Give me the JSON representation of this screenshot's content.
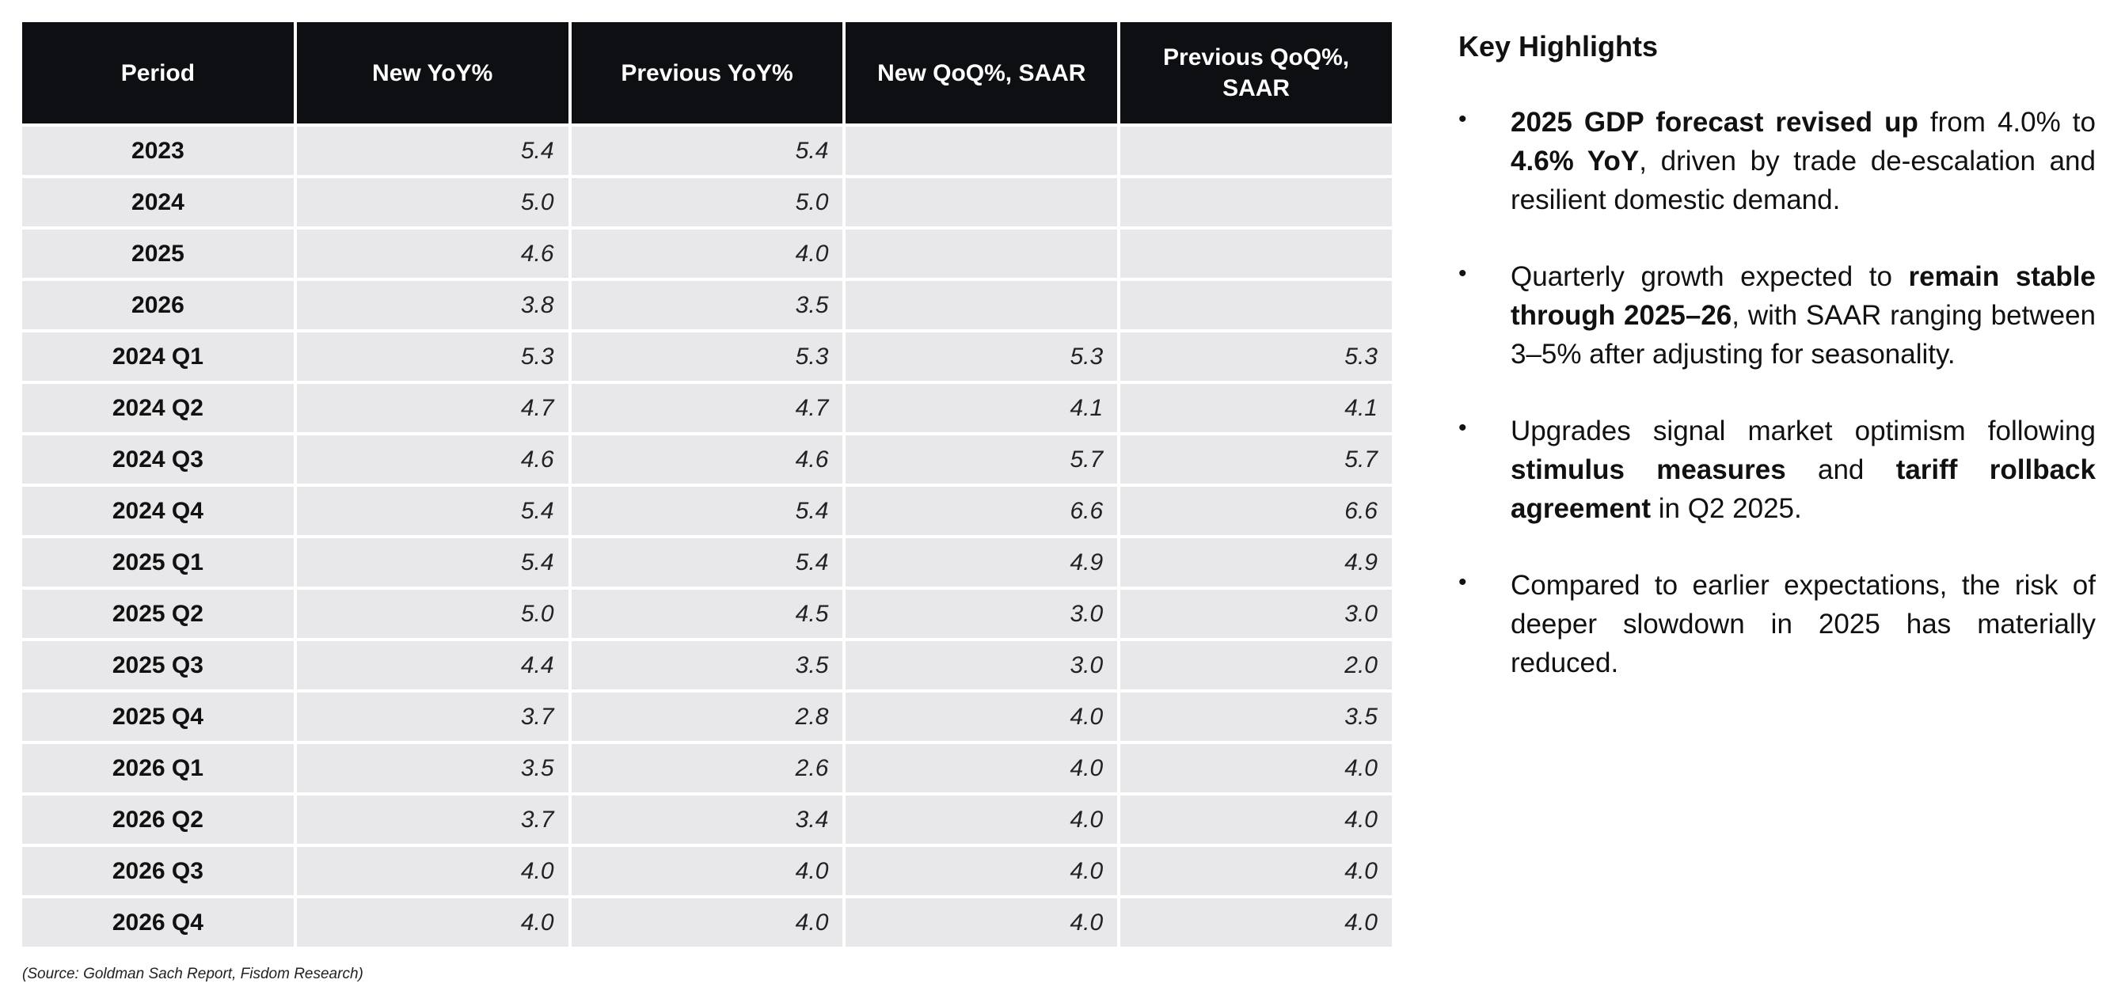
{
  "table": {
    "headers": [
      "Period",
      "New YoY%",
      "Previous YoY%",
      "New QoQ%, SAAR",
      "Previous QoQ%, SAAR"
    ],
    "rows": [
      [
        "2023",
        "5.4",
        "5.4",
        "",
        ""
      ],
      [
        "2024",
        "5.0",
        "5.0",
        "",
        ""
      ],
      [
        "2025",
        "4.6",
        "4.0",
        "",
        ""
      ],
      [
        "2026",
        "3.8",
        "3.5",
        "",
        ""
      ],
      [
        "2024 Q1",
        "5.3",
        "5.3",
        "5.3",
        "5.3"
      ],
      [
        "2024 Q2",
        "4.7",
        "4.7",
        "4.1",
        "4.1"
      ],
      [
        "2024 Q3",
        "4.6",
        "4.6",
        "5.7",
        "5.7"
      ],
      [
        "2024 Q4",
        "5.4",
        "5.4",
        "6.6",
        "6.6"
      ],
      [
        "2025 Q1",
        "5.4",
        "5.4",
        "4.9",
        "4.9"
      ],
      [
        "2025 Q2",
        "5.0",
        "4.5",
        "3.0",
        "3.0"
      ],
      [
        "2025 Q3",
        "4.4",
        "3.5",
        "3.0",
        "2.0"
      ],
      [
        "2025 Q4",
        "3.7",
        "2.8",
        "4.0",
        "3.5"
      ],
      [
        "2026 Q1",
        "3.5",
        "2.6",
        "4.0",
        "4.0"
      ],
      [
        "2026 Q2",
        "3.7",
        "3.4",
        "4.0",
        "4.0"
      ],
      [
        "2026 Q3",
        "4.0",
        "4.0",
        "4.0",
        "4.0"
      ],
      [
        "2026 Q4",
        "4.0",
        "4.0",
        "4.0",
        "4.0"
      ]
    ]
  },
  "source": "(Source: Goldman Sach Report, Fisdom Research)",
  "highlights": {
    "title": "Key Highlights",
    "bullet": "•",
    "items": [
      [
        {
          "text": "2025 GDP forecast revised up",
          "bold": true
        },
        {
          "text": " from 4.0% to ",
          "bold": false
        },
        {
          "text": "4.6% YoY",
          "bold": true
        },
        {
          "text": ", driven by trade de-escalation and resilient domestic demand.",
          "bold": false
        }
      ],
      [
        {
          "text": "Quarterly growth expected to ",
          "bold": false
        },
        {
          "text": "remain stable through 2025–26",
          "bold": true
        },
        {
          "text": ", with SAAR ranging between 3–5% after adjusting for seasonality.",
          "bold": false
        }
      ],
      [
        {
          "text": "Upgrades signal market optimism following ",
          "bold": false
        },
        {
          "text": "stimulus measures",
          "bold": true
        },
        {
          "text": " and ",
          "bold": false
        },
        {
          "text": "tariff rollback agreement",
          "bold": true
        },
        {
          "text": " in Q2 2025.",
          "bold": false
        }
      ],
      [
        {
          "text": "Compared to earlier expectations, the risk of deeper slowdown in 2025 has materially reduced.",
          "bold": false
        }
      ]
    ]
  }
}
